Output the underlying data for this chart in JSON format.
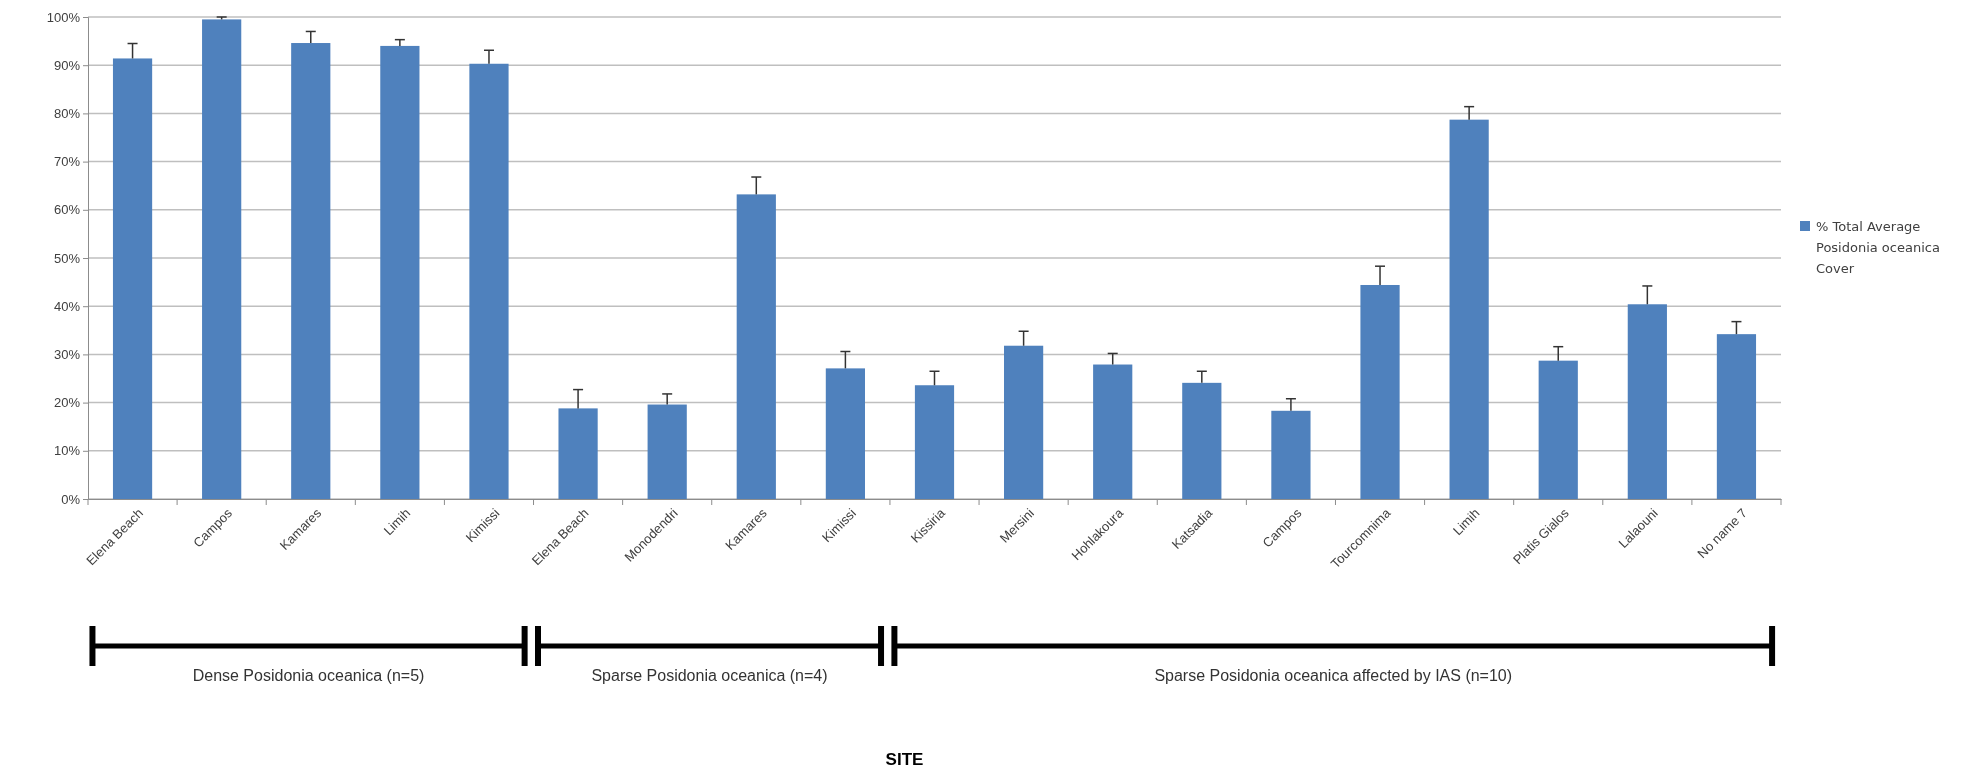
{
  "chart_data": {
    "type": "bar",
    "categories": [
      "Elena Beach",
      "Campos",
      "Kamares",
      "Limih",
      "Kimissi",
      "Elena Beach",
      "Monodendri",
      "Kamares",
      "Kimissi",
      "Kissiria",
      "Mersini",
      "Hohlakoura",
      "Katsadia",
      "Campos",
      "Tourcomnima",
      "Limih",
      "Platis Gialos",
      "Lalaouni",
      "No name 7"
    ],
    "series": [
      {
        "name": "% Total Average Posidonia oceanica Cover",
        "color": "#4f81bd",
        "values": [
          91.4,
          99.5,
          94.6,
          94.0,
          90.3,
          18.8,
          19.6,
          63.2,
          27.1,
          23.6,
          31.8,
          27.9,
          24.1,
          18.3,
          44.4,
          78.7,
          28.7,
          40.4,
          34.2
        ],
        "errors": [
          [
            91.4,
            94.5
          ],
          [
            99.5,
            100
          ],
          [
            94.6,
            97.0
          ],
          [
            94.0,
            95.3
          ],
          [
            90.3,
            93.1
          ],
          [
            18.8,
            22.7
          ],
          [
            19.6,
            21.8
          ],
          [
            63.2,
            66.8
          ],
          [
            27.1,
            30.6
          ],
          [
            23.6,
            26.5
          ],
          [
            31.8,
            34.8
          ],
          [
            27.9,
            30.2
          ],
          [
            24.1,
            26.5
          ],
          [
            18.3,
            20.8
          ],
          [
            44.4,
            48.3
          ],
          [
            78.7,
            81.4
          ],
          [
            28.7,
            31.6
          ],
          [
            40.4,
            44.2
          ],
          [
            34.2,
            36.8
          ]
        ]
      }
    ],
    "ylim": [
      0,
      100
    ],
    "yticks": [
      {
        "value": 0,
        "label": "0%"
      },
      {
        "value": 10,
        "label": "10%"
      },
      {
        "value": 20,
        "label": "20%"
      },
      {
        "value": 30,
        "label": "30%"
      },
      {
        "value": 40,
        "label": "40%"
      },
      {
        "value": 50,
        "label": "50%"
      },
      {
        "value": 60,
        "label": "60%"
      },
      {
        "value": 70,
        "label": "70%"
      },
      {
        "value": 80,
        "label": "80%"
      },
      {
        "value": 90,
        "label": "90%"
      },
      {
        "value": 100,
        "label": "100%"
      }
    ],
    "grid": "y",
    "legend": "right",
    "annotations": [
      "Dense Posidonia oceanica (n=5)",
      "Sparse Posidonia oceanica (n=4)",
      "Sparse Posidonia oceanica affected by IAS (n=10)",
      "SITE"
    ]
  }
}
